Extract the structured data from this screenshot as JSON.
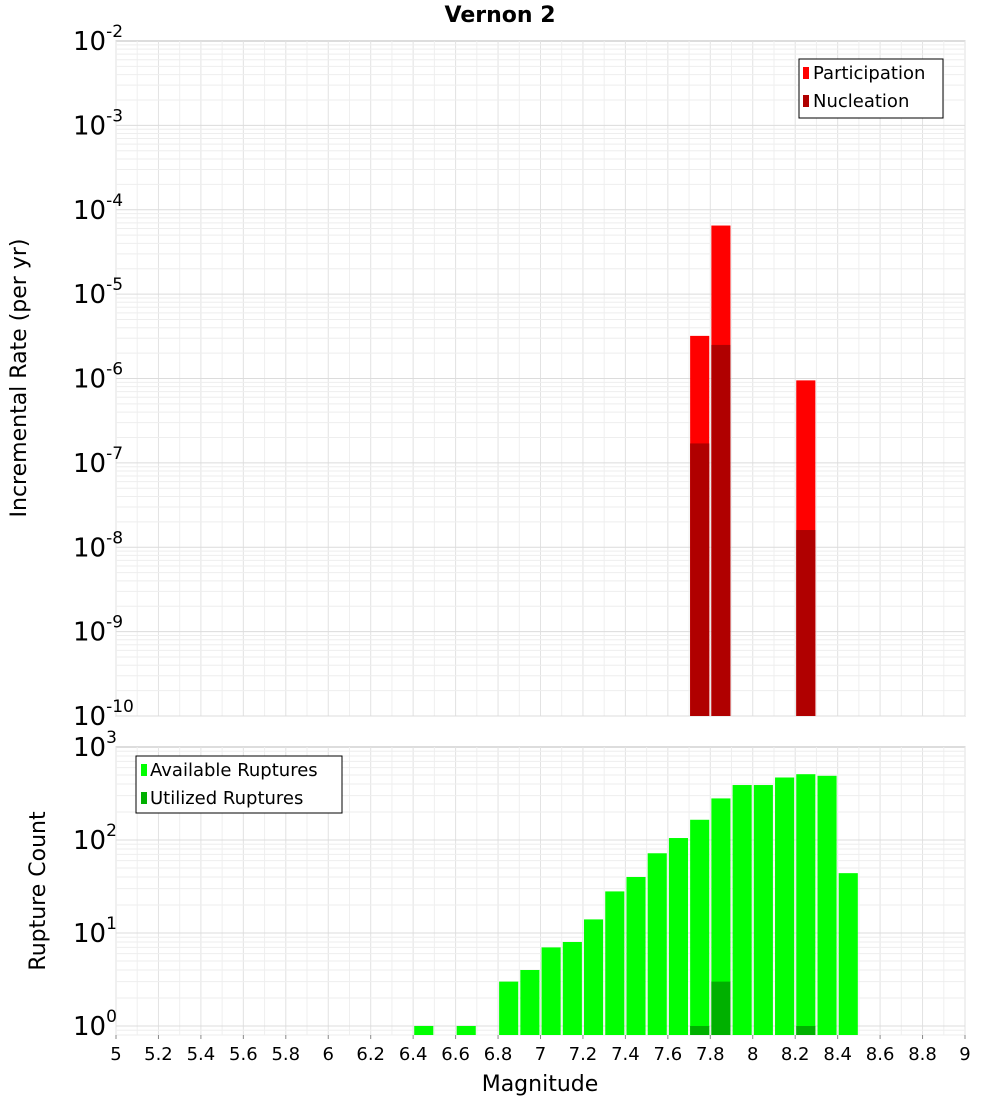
{
  "chart_data": [
    {
      "type": "bar",
      "title": "Vernon 2",
      "xlabel": "",
      "ylabel": "Incremental Rate (per yr)",
      "yscale": "log",
      "ylim": [
        1e-10,
        0.01
      ],
      "xlim": [
        5,
        9
      ],
      "grid": true,
      "legend_position": "top-right",
      "bar_width": 0.09,
      "series": [
        {
          "name": "Participation",
          "color": "#ff0000",
          "x": [
            7.75,
            7.85,
            8.25
          ],
          "values": [
            3.2e-06,
            6.5e-05,
            9.5e-07
          ]
        },
        {
          "name": "Nucleation",
          "color": "#b00000",
          "x": [
            7.75,
            7.85,
            8.25
          ],
          "values": [
            1.7e-07,
            2.5e-06,
            1.6e-08
          ]
        }
      ],
      "y_ticks": [
        {
          "base": "10",
          "exp": "-2",
          "value": 0.01
        },
        {
          "base": "10",
          "exp": "-3",
          "value": 0.001
        },
        {
          "base": "10",
          "exp": "-4",
          "value": 0.0001
        },
        {
          "base": "10",
          "exp": "-5",
          "value": 1e-05
        },
        {
          "base": "10",
          "exp": "-6",
          "value": 1e-06
        },
        {
          "base": "10",
          "exp": "-7",
          "value": 1e-07
        },
        {
          "base": "10",
          "exp": "-8",
          "value": 1e-08
        },
        {
          "base": "10",
          "exp": "-9",
          "value": 1e-09
        },
        {
          "base": "10",
          "exp": "-10",
          "value": 1e-10
        }
      ]
    },
    {
      "type": "bar",
      "title": "",
      "xlabel": "Magnitude",
      "ylabel": "Rupture Count",
      "yscale": "log",
      "ylim": [
        0.8,
        1000
      ],
      "xlim": [
        5,
        9
      ],
      "grid": true,
      "legend_position": "top-left",
      "bar_width": 0.09,
      "series": [
        {
          "name": "Available Ruptures",
          "color": "#00ff00",
          "x": [
            6.45,
            6.65,
            6.85,
            6.95,
            7.05,
            7.15,
            7.25,
            7.35,
            7.45,
            7.55,
            7.65,
            7.75,
            7.85,
            7.95,
            8.05,
            8.15,
            8.25,
            8.35,
            8.45
          ],
          "values": [
            1,
            1,
            3,
            4,
            7,
            8,
            14,
            28,
            40,
            72,
            105,
            165,
            280,
            390,
            390,
            470,
            510,
            490,
            44
          ]
        },
        {
          "name": "Utilized Ruptures",
          "color": "#00b000",
          "x": [
            7.75,
            7.85,
            8.25
          ],
          "values": [
            1,
            3,
            1
          ]
        }
      ],
      "y_ticks": [
        {
          "base": "10",
          "exp": "3",
          "value": 1000
        },
        {
          "base": "10",
          "exp": "2",
          "value": 100
        },
        {
          "base": "10",
          "exp": "1",
          "value": 10
        },
        {
          "base": "10",
          "exp": "0",
          "value": 1
        }
      ],
      "x_ticks": [
        "5",
        "5.2",
        "5.4",
        "5.6",
        "5.8",
        "6",
        "6.2",
        "6.4",
        "6.6",
        "6.8",
        "7",
        "7.2",
        "7.4",
        "7.6",
        "7.8",
        "8",
        "8.2",
        "8.4",
        "8.6",
        "8.8",
        "9"
      ]
    }
  ]
}
